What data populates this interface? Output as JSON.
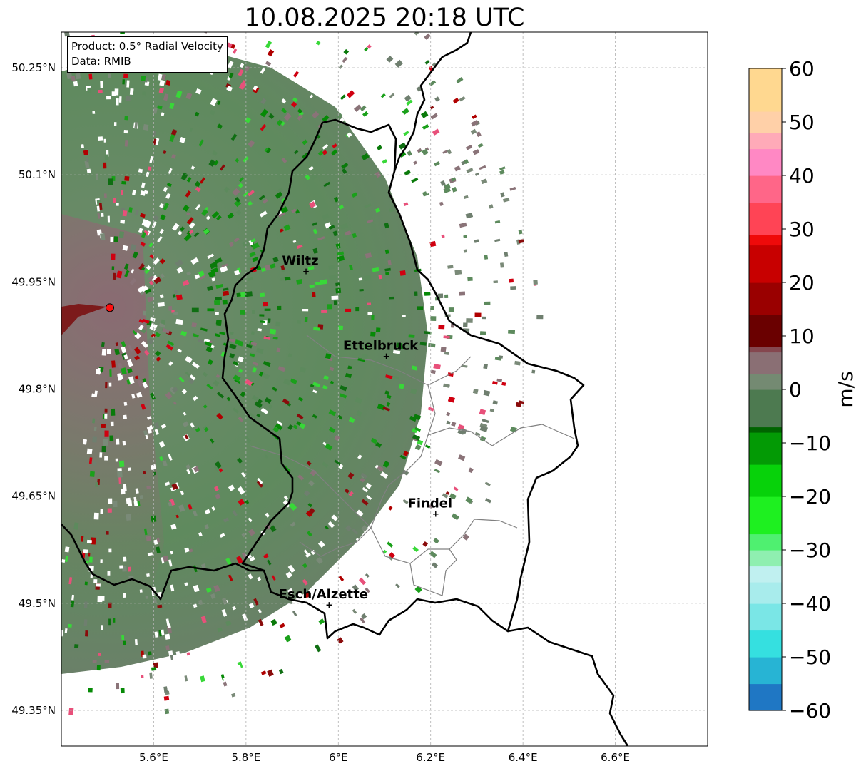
{
  "title": "10.08.2025 20:18 UTC",
  "info": {
    "product": "Product: 0.5° Radial Velocity",
    "source": "Data: RMIB"
  },
  "map": {
    "lon_range": [
      5.4,
      6.8
    ],
    "lat_range": [
      49.3,
      50.3
    ],
    "lon_ticks": [
      {
        "value": 5.6,
        "label": "5.6°E"
      },
      {
        "value": 5.8,
        "label": "5.8°E"
      },
      {
        "value": 6.0,
        "label": "6°E"
      },
      {
        "value": 6.2,
        "label": "6.2°E"
      },
      {
        "value": 6.4,
        "label": "6.4°E"
      },
      {
        "value": 6.6,
        "label": "6.6°E"
      }
    ],
    "lat_ticks": [
      {
        "value": 49.35,
        "label": "49.35°N"
      },
      {
        "value": 49.5,
        "label": "49.5°N"
      },
      {
        "value": 49.65,
        "label": "49.65°N"
      },
      {
        "value": 49.8,
        "label": "49.8°N"
      },
      {
        "value": 49.95,
        "label": "49.95°N"
      },
      {
        "value": 50.1,
        "label": "50.1°N"
      },
      {
        "value": 50.25,
        "label": "50.25°N"
      }
    ],
    "radar_site": {
      "lon": 5.505,
      "lat": 49.914
    },
    "cities": [
      {
        "name": "Wiltz",
        "lon": 5.93,
        "lat": 49.966
      },
      {
        "name": "Ettelbruck",
        "lon": 6.104,
        "lat": 49.847
      },
      {
        "name": "Findel",
        "lon": 6.211,
        "lat": 49.626
      },
      {
        "name": "Esch/Alzette",
        "lon": 5.98,
        "lat": 49.499
      }
    ]
  },
  "colorbar": {
    "label": "m/s",
    "min": -60,
    "max": 60,
    "ticks": [
      {
        "value": 60,
        "label": "60"
      },
      {
        "value": 50,
        "label": "50"
      },
      {
        "value": 40,
        "label": "40"
      },
      {
        "value": 30,
        "label": "30"
      },
      {
        "value": 20,
        "label": "20"
      },
      {
        "value": 10,
        "label": "10"
      },
      {
        "value": 0,
        "label": "0"
      },
      {
        "value": -10,
        "label": "−10"
      },
      {
        "value": -20,
        "label": "−20"
      },
      {
        "value": -30,
        "label": "−30"
      },
      {
        "value": -40,
        "label": "−40"
      },
      {
        "value": -50,
        "label": "−50"
      },
      {
        "value": -60,
        "label": "−60"
      }
    ],
    "stops": [
      {
        "value": -60,
        "color": "#1f77c4"
      },
      {
        "value": -55,
        "color": "#27b4d4"
      },
      {
        "value": -50,
        "color": "#35e0e0"
      },
      {
        "value": -45,
        "color": "#7ae6e6"
      },
      {
        "value": -40,
        "color": "#a8ecec"
      },
      {
        "value": -36,
        "color": "#c0f0f0"
      },
      {
        "value": -33,
        "color": "#8fefb0"
      },
      {
        "value": -30,
        "color": "#4ff070"
      },
      {
        "value": -27,
        "color": "#1ef020"
      },
      {
        "value": -20,
        "color": "#07d20a"
      },
      {
        "value": -14,
        "color": "#039a05"
      },
      {
        "value": -8,
        "color": "#006400"
      },
      {
        "value": -7,
        "color": "#4d7a50"
      },
      {
        "value": 0,
        "color": "#748a72"
      },
      {
        "value": 3,
        "color": "#8a6f74"
      },
      {
        "value": 7,
        "color": "#85474f"
      },
      {
        "value": 8,
        "color": "#6a0000"
      },
      {
        "value": 14,
        "color": "#9a0000"
      },
      {
        "value": 20,
        "color": "#c80000"
      },
      {
        "value": 27,
        "color": "#ef0a0a"
      },
      {
        "value": 29,
        "color": "#ff4455"
      },
      {
        "value": 35,
        "color": "#ff6688"
      },
      {
        "value": 40,
        "color": "#ff88c4"
      },
      {
        "value": 45,
        "color": "#ffaab8"
      },
      {
        "value": 48,
        "color": "#ffd0a8"
      },
      {
        "value": 52,
        "color": "#ffd890"
      },
      {
        "value": 60,
        "color": "#ff9848"
      }
    ]
  }
}
